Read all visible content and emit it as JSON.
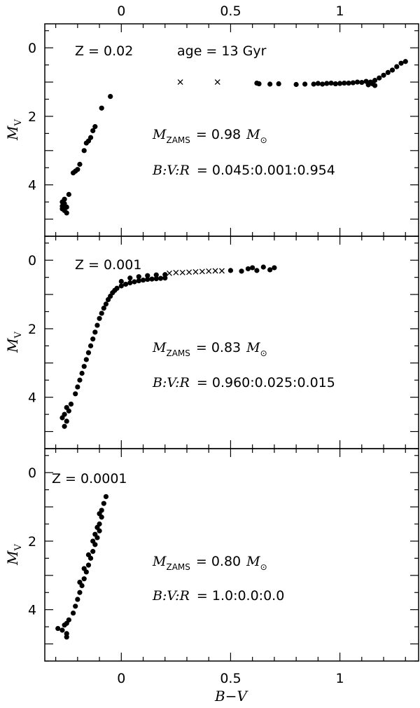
{
  "chart_data": {
    "type": "scatter",
    "xlabel": "B−V",
    "ylabel": "M",
    "ylabel_sub": "V",
    "x_ticks": [
      "0",
      "0.5",
      "1"
    ],
    "x_tick_values": [
      0,
      0.5,
      1
    ],
    "y_ticks": [
      "0",
      "2",
      "4"
    ],
    "y_tick_values": [
      0,
      2,
      4
    ],
    "xlim": [
      -0.35,
      1.36
    ],
    "ylim": [
      5.5,
      -0.7
    ],
    "grid": false,
    "panels": [
      {
        "metallicity": "Z = 0.02",
        "age": "age = 13 Gyr",
        "mass_label": "M",
        "mass_sub": "ZAMS",
        "mass_value": "= 0.98",
        "mass_unit": "M",
        "ratio_label": "B:V:R",
        "ratio_value": "= 0.045:0.001:0.954",
        "series": [
          {
            "marker": "circle",
            "points": [
              [
                -0.05,
                1.42
              ],
              [
                -0.09,
                1.76
              ],
              [
                -0.12,
                2.3
              ],
              [
                -0.13,
                2.42
              ],
              [
                -0.14,
                2.62
              ],
              [
                -0.15,
                2.72
              ],
              [
                -0.16,
                2.78
              ],
              [
                -0.17,
                3.0
              ],
              [
                -0.19,
                3.4
              ],
              [
                -0.2,
                3.55
              ],
              [
                -0.22,
                3.65
              ],
              [
                -0.21,
                3.6
              ],
              [
                -0.24,
                4.28
              ],
              [
                -0.26,
                4.42
              ],
              [
                -0.27,
                4.5
              ],
              [
                -0.26,
                4.6
              ],
              [
                -0.27,
                4.7
              ],
              [
                -0.26,
                4.75
              ],
              [
                -0.25,
                4.82
              ],
              [
                -0.26,
                4.55
              ],
              [
                -0.25,
                4.65
              ],
              [
                -0.27,
                4.62
              ],
              [
                0.62,
                1.03
              ],
              [
                0.63,
                1.05
              ],
              [
                0.68,
                1.06
              ],
              [
                0.72,
                1.05
              ],
              [
                0.8,
                1.07
              ],
              [
                0.84,
                1.06
              ],
              [
                0.88,
                1.06
              ],
              [
                0.9,
                1.04
              ],
              [
                0.92,
                1.06
              ],
              [
                0.94,
                1.04
              ],
              [
                0.96,
                1.03
              ],
              [
                0.98,
                1.05
              ],
              [
                1.0,
                1.04
              ],
              [
                1.02,
                1.03
              ],
              [
                1.04,
                1.03
              ],
              [
                1.06,
                1.02
              ],
              [
                1.08,
                1.0
              ],
              [
                1.1,
                1.01
              ],
              [
                1.12,
                0.98
              ],
              [
                1.14,
                1.0
              ],
              [
                1.16,
                0.95
              ],
              [
                1.18,
                0.88
              ],
              [
                1.2,
                0.8
              ],
              [
                1.22,
                0.72
              ],
              [
                1.24,
                0.65
              ],
              [
                1.26,
                0.55
              ],
              [
                1.28,
                0.45
              ],
              [
                1.3,
                0.4
              ],
              [
                1.15,
                1.05
              ],
              [
                1.16,
                1.1
              ],
              [
                1.13,
                1.08
              ]
            ]
          },
          {
            "marker": "cross",
            "points": [
              [
                0.27,
                1.0
              ],
              [
                0.44,
                1.0
              ]
            ]
          }
        ]
      },
      {
        "metallicity": "Z = 0.001",
        "mass_label": "M",
        "mass_sub": "ZAMS",
        "mass_value": "= 0.83",
        "mass_unit": "M",
        "ratio_label": "B:V:R",
        "ratio_value": "= 0.960:0.025:0.015",
        "series": [
          {
            "marker": "circle",
            "points": [
              [
                -0.26,
                4.5
              ],
              [
                -0.27,
                4.6
              ],
              [
                -0.25,
                4.7
              ],
              [
                -0.26,
                4.85
              ],
              [
                -0.24,
                4.4
              ],
              [
                -0.25,
                4.3
              ],
              [
                -0.23,
                4.2
              ],
              [
                -0.21,
                3.9
              ],
              [
                -0.2,
                3.7
              ],
              [
                -0.19,
                3.5
              ],
              [
                -0.18,
                3.3
              ],
              [
                -0.17,
                3.1
              ],
              [
                -0.16,
                2.9
              ],
              [
                -0.15,
                2.7
              ],
              [
                -0.14,
                2.5
              ],
              [
                -0.13,
                2.3
              ],
              [
                -0.12,
                2.1
              ],
              [
                -0.11,
                1.9
              ],
              [
                -0.1,
                1.7
              ],
              [
                -0.09,
                1.55
              ],
              [
                -0.08,
                1.4
              ],
              [
                -0.07,
                1.28
              ],
              [
                -0.06,
                1.15
              ],
              [
                -0.05,
                1.05
              ],
              [
                -0.04,
                0.95
              ],
              [
                -0.03,
                0.88
              ],
              [
                -0.02,
                0.82
              ],
              [
                0.0,
                0.75
              ],
              [
                0.02,
                0.7
              ],
              [
                0.04,
                0.66
              ],
              [
                0.06,
                0.63
              ],
              [
                0.08,
                0.6
              ],
              [
                0.1,
                0.58
              ],
              [
                0.12,
                0.56
              ],
              [
                0.14,
                0.55
              ],
              [
                0.16,
                0.54
              ],
              [
                0.18,
                0.53
              ],
              [
                0.2,
                0.52
              ],
              [
                0.0,
                0.62
              ],
              [
                0.04,
                0.52
              ],
              [
                0.08,
                0.48
              ],
              [
                0.12,
                0.45
              ],
              [
                0.16,
                0.43
              ],
              [
                0.2,
                0.42
              ],
              [
                0.58,
                0.25
              ],
              [
                0.6,
                0.22
              ],
              [
                0.62,
                0.3
              ],
              [
                0.65,
                0.2
              ],
              [
                0.7,
                0.22
              ],
              [
                0.68,
                0.28
              ],
              [
                0.55,
                0.32
              ],
              [
                0.5,
                0.3
              ]
            ]
          },
          {
            "marker": "cross",
            "points": [
              [
                0.22,
                0.38
              ],
              [
                0.25,
                0.36
              ],
              [
                0.28,
                0.36
              ],
              [
                0.31,
                0.35
              ],
              [
                0.34,
                0.34
              ],
              [
                0.37,
                0.33
              ],
              [
                0.4,
                0.32
              ],
              [
                0.43,
                0.31
              ],
              [
                0.46,
                0.31
              ]
            ]
          }
        ]
      },
      {
        "metallicity": "Z = 0.0001",
        "mass_label": "M",
        "mass_sub": "ZAMS",
        "mass_value": "= 0.80",
        "mass_unit": "M",
        "ratio_label": "B:V:R",
        "ratio_value": "= 1.0:0.0:0.0",
        "series": [
          {
            "marker": "circle",
            "points": [
              [
                -0.07,
                0.7
              ],
              [
                -0.08,
                0.9
              ],
              [
                -0.09,
                1.1
              ],
              [
                -0.09,
                1.3
              ],
              [
                -0.1,
                1.5
              ],
              [
                -0.1,
                1.7
              ],
              [
                -0.11,
                1.9
              ],
              [
                -0.12,
                2.1
              ],
              [
                -0.13,
                2.3
              ],
              [
                -0.14,
                2.5
              ],
              [
                -0.15,
                2.7
              ],
              [
                -0.16,
                2.9
              ],
              [
                -0.17,
                3.1
              ],
              [
                -0.18,
                3.3
              ],
              [
                -0.19,
                3.5
              ],
              [
                -0.2,
                3.7
              ],
              [
                -0.21,
                3.9
              ],
              [
                -0.22,
                4.1
              ],
              [
                -0.24,
                4.3
              ],
              [
                -0.25,
                4.4
              ],
              [
                -0.26,
                4.45
              ],
              [
                -0.27,
                4.6
              ],
              [
                -0.25,
                4.7
              ],
              [
                -0.25,
                4.8
              ],
              [
                -0.29,
                4.55
              ],
              [
                -0.1,
                1.2
              ],
              [
                -0.11,
                1.6
              ],
              [
                -0.12,
                1.8
              ],
              [
                -0.13,
                2.0
              ],
              [
                -0.15,
                2.4
              ],
              [
                -0.17,
                2.8
              ],
              [
                -0.19,
                3.2
              ]
            ]
          }
        ]
      }
    ]
  }
}
